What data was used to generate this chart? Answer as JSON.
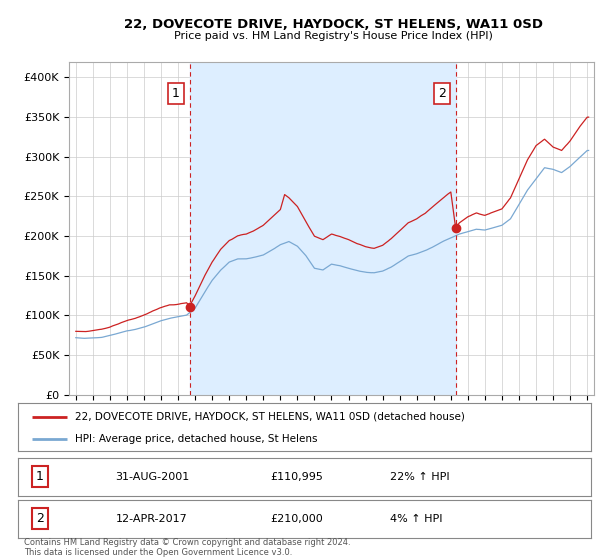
{
  "title": "22, DOVECOTE DRIVE, HAYDOCK, ST HELENS, WA11 0SD",
  "subtitle": "Price paid vs. HM Land Registry's House Price Index (HPI)",
  "ylim": [
    0,
    420000
  ],
  "yticks": [
    0,
    50000,
    100000,
    150000,
    200000,
    250000,
    300000,
    350000,
    400000
  ],
  "ytick_labels": [
    "£0",
    "£50K",
    "£100K",
    "£150K",
    "£200K",
    "£250K",
    "£300K",
    "£350K",
    "£400K"
  ],
  "hpi_color": "#7aa8d2",
  "price_color": "#cc2222",
  "vline_color": "#cc2222",
  "shade_color": "#ddeeff",
  "marker1_year": 2001.67,
  "marker1_price": 110995,
  "marker1_label": "1",
  "marker2_year": 2017.28,
  "marker2_price": 210000,
  "marker2_label": "2",
  "legend_line1": "22, DOVECOTE DRIVE, HAYDOCK, ST HELENS, WA11 0SD (detached house)",
  "legend_line2": "HPI: Average price, detached house, St Helens",
  "table_row1_num": "1",
  "table_row1_date": "31-AUG-2001",
  "table_row1_price": "£110,995",
  "table_row1_hpi": "22% ↑ HPI",
  "table_row2_num": "2",
  "table_row2_date": "12-APR-2017",
  "table_row2_price": "£210,000",
  "table_row2_hpi": "4% ↑ HPI",
  "footer": "Contains HM Land Registry data © Crown copyright and database right 2024.\nThis data is licensed under the Open Government Licence v3.0.",
  "background_color": "#ffffff",
  "grid_color": "#cccccc"
}
